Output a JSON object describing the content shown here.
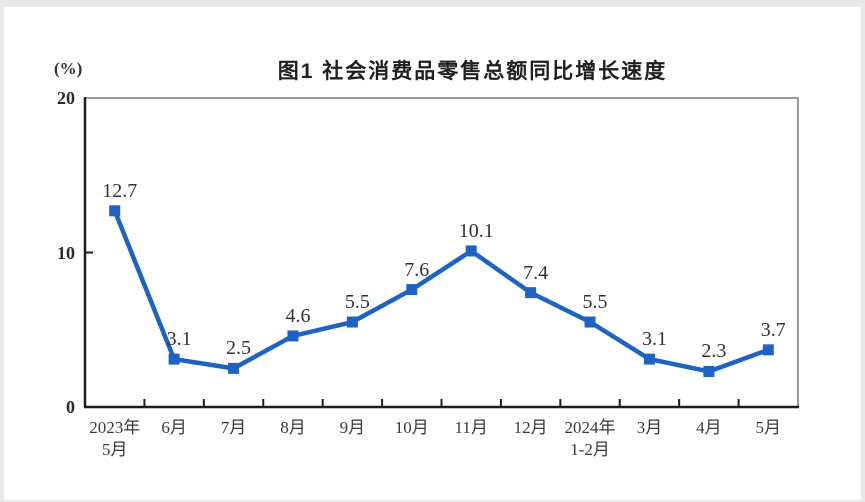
{
  "page": {
    "title": "图1 社会消费品零售总额同比增长速度",
    "unit_label": "(%)",
    "background_color": "#ffffff",
    "frame_background_color": "#e9e9e9"
  },
  "chart_data": {
    "type": "line",
    "title": "图1 社会消费品零售总额同比增长速度",
    "ylabel": "(%)",
    "xlabel": "",
    "ylim": [
      0,
      20
    ],
    "yticks": [
      0,
      10,
      20
    ],
    "categories": [
      "2023年\n5月",
      "6月",
      "7月",
      "8月",
      "9月",
      "10月",
      "11月",
      "12月",
      "2024年\n1-2月",
      "3月",
      "4月",
      "5月"
    ],
    "values": [
      12.7,
      3.1,
      2.5,
      4.6,
      5.5,
      7.6,
      10.1,
      7.4,
      5.5,
      3.1,
      2.3,
      3.7
    ],
    "data_labels": [
      "12.7",
      "3.1",
      "2.5",
      "4.6",
      "5.5",
      "7.6",
      "10.1",
      "7.4",
      "5.5",
      "3.1",
      "2.3",
      "3.7"
    ],
    "grid": false,
    "legend": false,
    "marker": "square",
    "line_color": "#1c63c4",
    "marker_color": "#1c63c4",
    "axis_color": "#1d1d1d",
    "frame_color": "#9a9a9a",
    "label_color": "#333333"
  }
}
